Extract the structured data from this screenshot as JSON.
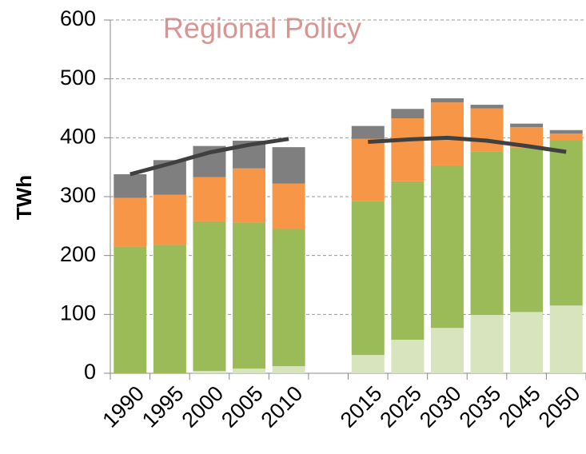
{
  "chart_data": {
    "type": "bar",
    "stacked": true,
    "title": "Regional Policy",
    "y_label": "TWh",
    "categories": [
      "1990",
      "1995",
      "2000",
      "2005",
      "2010",
      null,
      "2015",
      "2025",
      "2030",
      "2035",
      "2045",
      "2050"
    ],
    "series": [
      {
        "color": "#d7e4bd",
        "values": [
          0,
          0,
          4,
          8,
          12,
          null,
          31,
          57,
          77,
          99,
          104,
          115
        ]
      },
      {
        "color": "#9bbb59",
        "values": [
          215,
          218,
          254,
          248,
          233,
          null,
          261,
          269,
          276,
          278,
          279,
          280
        ]
      },
      {
        "color": "#f79646",
        "values": [
          83,
          85,
          75,
          92,
          77,
          null,
          106,
          107,
          107,
          73,
          35,
          12
        ]
      },
      {
        "color": "#7f7f7f",
        "values": [
          40,
          59,
          53,
          47,
          62,
          null,
          22,
          16,
          7,
          6,
          6,
          6
        ]
      },
      {
        "type": "line",
        "color": "#404040",
        "values": [
          338,
          356,
          375,
          388,
          398,
          null,
          393,
          397,
          400,
          395,
          386,
          376
        ]
      }
    ],
    "ylim": [
      0,
      600
    ],
    "yticks": [
      0,
      100,
      200,
      300,
      400,
      500,
      600
    ],
    "grid": true
  }
}
